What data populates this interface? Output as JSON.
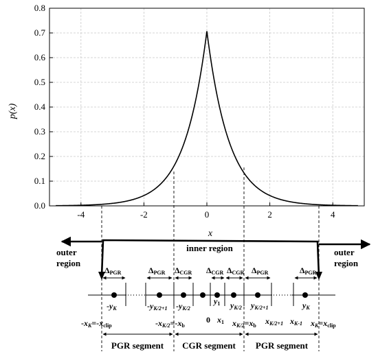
{
  "chart_data": {
    "type": "line",
    "function": "Laplacian pdf p(x) = exp(-sqrt(2)|x|)/sqrt(2)",
    "x": [
      -4.8,
      -4,
      -3.5,
      -3,
      -2.5,
      -2,
      -1.5,
      -1.2,
      -1,
      -0.75,
      -0.5,
      -0.25,
      0,
      0.25,
      0.5,
      0.75,
      1,
      1.2,
      1.5,
      2,
      2.5,
      3,
      3.5,
      4,
      4.8
    ],
    "y": [
      0.0008,
      0.0025,
      0.005,
      0.01,
      0.021,
      0.042,
      0.085,
      0.13,
      0.172,
      0.245,
      0.349,
      0.497,
      0.707,
      0.497,
      0.349,
      0.245,
      0.172,
      0.13,
      0.085,
      0.042,
      0.021,
      0.01,
      0.005,
      0.0025,
      0.0008
    ],
    "xlim": [
      -5,
      5
    ],
    "ylim": [
      0,
      0.8
    ],
    "xticks": [
      "-4",
      "-2",
      "0",
      "2",
      "4"
    ],
    "yticks": [
      "0.0",
      "0.1",
      "0.2",
      "0.3",
      "0.4",
      "0.5",
      "0.6",
      "0.7",
      "0.8"
    ],
    "xlabel": "x",
    "ylabel": "p(x)",
    "grid": true
  },
  "labels": {
    "outer_region_left": [
      "outer",
      "region"
    ],
    "outer_region_right": [
      "outer",
      "region"
    ],
    "inner_region": "inner region",
    "pgr_segment_left": "PGR segment",
    "cgr_segment": "CGR segment",
    "pgr_segment_right": "PGR segment",
    "zero": "0"
  }
}
